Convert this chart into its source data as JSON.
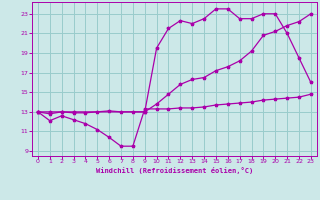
{
  "background_color": "#cce8e8",
  "grid_color": "#99cccc",
  "line_color": "#aa00aa",
  "marker": "*",
  "xlim": [
    -0.5,
    23.5
  ],
  "ylim": [
    8.5,
    24.2
  ],
  "xticks": [
    0,
    1,
    2,
    3,
    4,
    5,
    6,
    7,
    8,
    9,
    10,
    11,
    12,
    13,
    14,
    15,
    16,
    17,
    18,
    19,
    20,
    21,
    22,
    23
  ],
  "yticks": [
    9,
    11,
    13,
    15,
    17,
    19,
    21,
    23
  ],
  "xlabel": "Windchill (Refroidissement éolien,°C)",
  "line1_x": [
    0,
    1,
    2,
    3,
    4,
    5,
    6,
    7,
    8,
    9,
    10,
    11,
    12,
    13,
    14,
    15,
    16,
    17,
    18,
    19,
    20,
    21,
    22,
    23
  ],
  "line1_y": [
    13,
    12.1,
    12.6,
    12.2,
    11.8,
    11.2,
    10.4,
    9.5,
    9.5,
    13.3,
    13.3,
    13.3,
    13.4,
    13.4,
    13.5,
    13.7,
    13.8,
    13.9,
    14.0,
    14.2,
    14.3,
    14.4,
    14.5,
    14.8
  ],
  "line2_x": [
    0,
    1,
    2,
    3,
    4,
    5,
    6,
    7,
    8,
    9,
    10,
    11,
    12,
    13,
    14,
    15,
    16,
    17,
    18,
    19,
    20,
    21,
    22,
    23
  ],
  "line2_y": [
    13.0,
    12.8,
    13.0,
    12.9,
    12.9,
    13.0,
    13.1,
    13.0,
    13.0,
    13.0,
    13.8,
    14.8,
    15.8,
    16.3,
    16.5,
    17.2,
    17.6,
    18.2,
    19.2,
    20.8,
    21.2,
    21.8,
    22.2,
    23.0
  ],
  "line3_x": [
    0,
    1,
    2,
    3,
    9,
    10,
    11,
    12,
    13,
    14,
    15,
    16,
    17,
    18,
    19,
    20,
    21,
    22,
    23
  ],
  "line3_y": [
    13.0,
    13.0,
    13.0,
    13.0,
    13.0,
    19.5,
    21.5,
    22.3,
    22.0,
    22.5,
    23.5,
    23.5,
    22.5,
    22.5,
    23.0,
    23.0,
    21.0,
    18.5,
    16.0
  ]
}
